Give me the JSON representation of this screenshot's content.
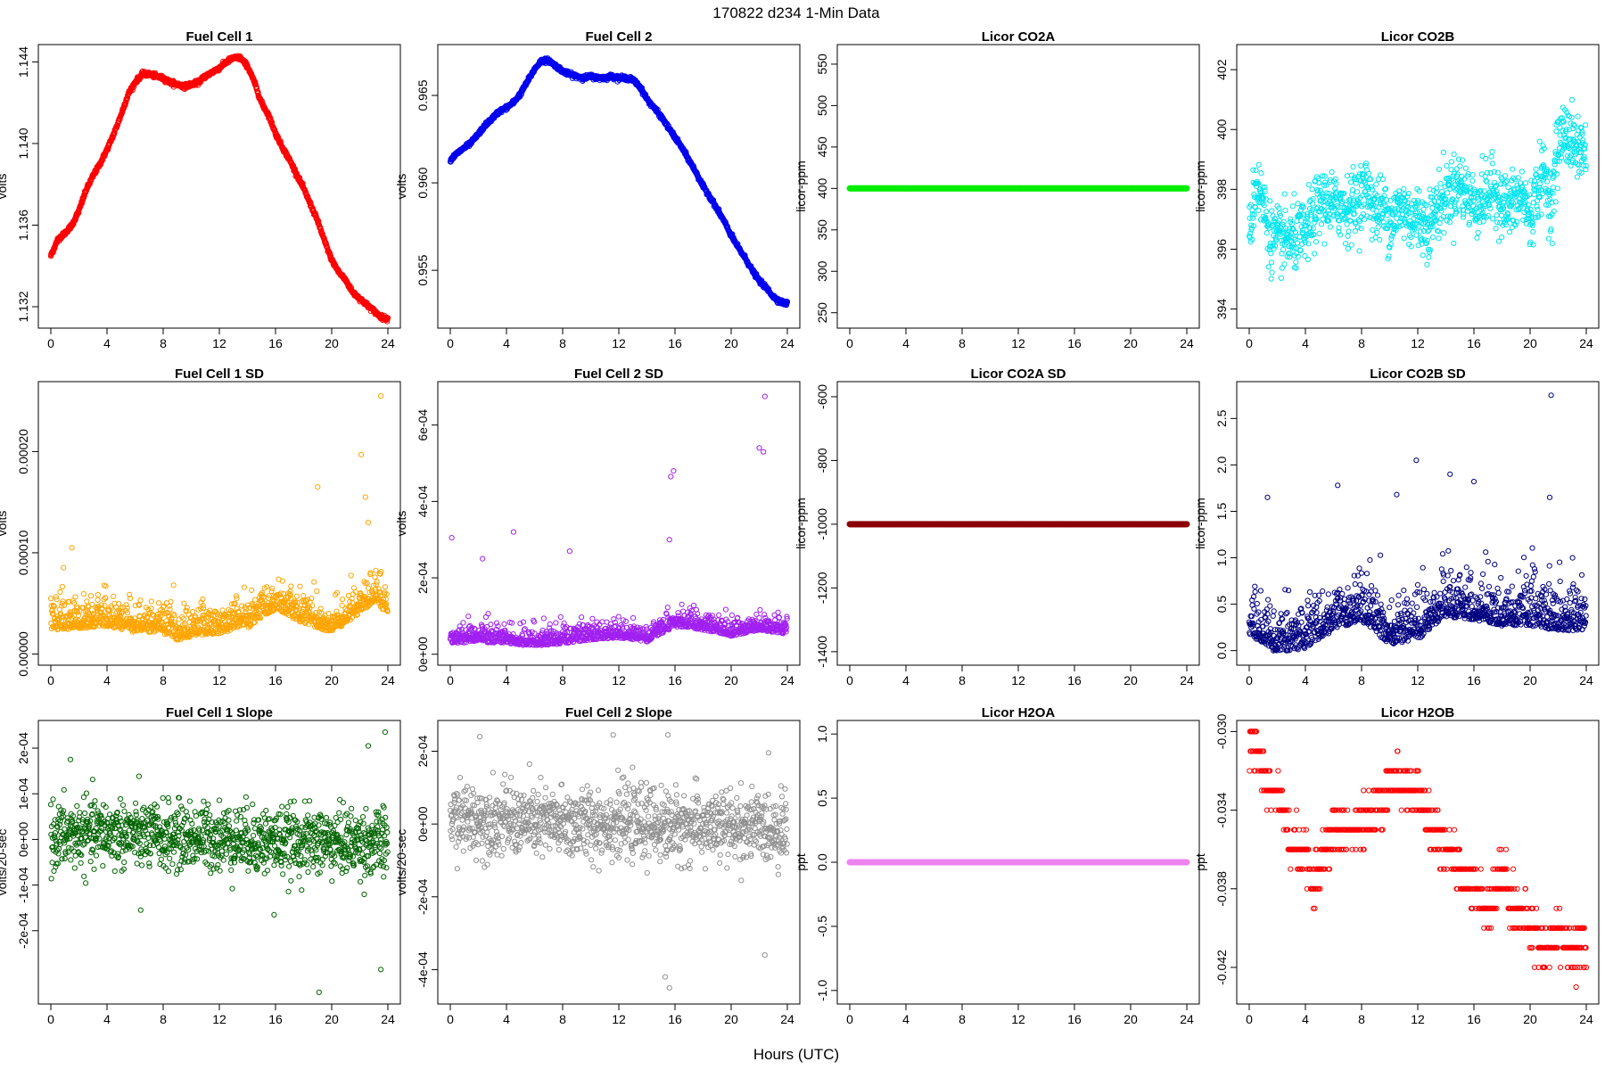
{
  "figure": {
    "title": "170822   d234   1-Min Data",
    "xlabel": "Hours (UTC)"
  },
  "chart_data": [
    {
      "id": "fc1",
      "type": "scatter",
      "title": "Fuel Cell 1",
      "ylabel": "volts",
      "color": "#ff0000",
      "xlim": [
        0,
        24
      ],
      "xticks": [
        0,
        4,
        8,
        12,
        16,
        20,
        24
      ],
      "ylim": [
        1.1313,
        1.1445
      ],
      "yticks": [
        1.132,
        1.136,
        1.14,
        1.144
      ],
      "yticklabels": [
        "1.132",
        "1.136",
        "1.140",
        "1.144"
      ],
      "x": [
        0,
        0.5,
        1,
        1.5,
        2,
        2.5,
        3,
        3.5,
        4,
        4.5,
        5,
        5.5,
        6,
        6.5,
        7,
        7.5,
        8,
        8.5,
        9,
        9.5,
        10,
        10.5,
        11,
        11.5,
        12,
        12.5,
        13,
        13.5,
        14,
        14.5,
        15,
        15.5,
        16,
        16.5,
        17,
        17.5,
        18,
        18.5,
        19,
        19.5,
        20,
        20.5,
        21,
        21.5,
        22,
        22.5,
        23,
        23.5,
        24
      ],
      "y": [
        1.1345,
        1.1353,
        1.1356,
        1.136,
        1.1367,
        1.1377,
        1.1384,
        1.139,
        1.1397,
        1.1405,
        1.1414,
        1.1424,
        1.143,
        1.1434,
        1.1434,
        1.1433,
        1.1432,
        1.143,
        1.1429,
        1.1428,
        1.1429,
        1.143,
        1.1433,
        1.1435,
        1.1437,
        1.144,
        1.1442,
        1.1442,
        1.1438,
        1.143,
        1.142,
        1.1414,
        1.1405,
        1.1398,
        1.1392,
        1.1385,
        1.1378,
        1.137,
        1.1362,
        1.1352,
        1.1343,
        1.1337,
        1.1333,
        1.1327,
        1.1324,
        1.1321,
        1.1318,
        1.1315,
        1.1314
      ]
    },
    {
      "id": "fc2",
      "type": "scatter",
      "title": "Fuel Cell 2",
      "ylabel": "volts",
      "color": "#0000ee",
      "xlim": [
        0,
        24
      ],
      "xticks": [
        0,
        4,
        8,
        12,
        16,
        20,
        24
      ],
      "ylim": [
        0.9521,
        0.9675
      ],
      "yticks": [
        0.955,
        0.96,
        0.965
      ],
      "yticklabels": [
        "0.955",
        "0.960",
        "0.965"
      ],
      "x": [
        0,
        0.5,
        1,
        1.5,
        2,
        2.5,
        3,
        3.5,
        4,
        4.5,
        5,
        5.5,
        6,
        6.5,
        7,
        7.5,
        8,
        8.5,
        9,
        9.5,
        10,
        10.5,
        11,
        11.5,
        12,
        12.5,
        13,
        13.5,
        14,
        14.5,
        15,
        15.5,
        16,
        16.5,
        17,
        17.5,
        18,
        18.5,
        19,
        19.5,
        20,
        20.5,
        21,
        21.5,
        22,
        22.5,
        23,
        23.5,
        24
      ],
      "y": [
        0.9613,
        0.9617,
        0.962,
        0.9623,
        0.9628,
        0.9633,
        0.9637,
        0.9641,
        0.9643,
        0.9646,
        0.9651,
        0.9658,
        0.9665,
        0.967,
        0.967,
        0.9667,
        0.9664,
        0.9662,
        0.9661,
        0.966,
        0.9661,
        0.966,
        0.966,
        0.9661,
        0.966,
        0.966,
        0.9659,
        0.9655,
        0.9648,
        0.9643,
        0.9638,
        0.9632,
        0.9626,
        0.962,
        0.9613,
        0.9606,
        0.9598,
        0.9592,
        0.9585,
        0.9578,
        0.957,
        0.9563,
        0.9557,
        0.955,
        0.9544,
        0.954,
        0.9535,
        0.9532,
        0.9531
      ]
    },
    {
      "id": "co2a",
      "type": "scatter",
      "title": "Licor CO2A",
      "ylabel": "licor-ppm",
      "color": "#00ee00",
      "xlim": [
        0,
        24
      ],
      "xticks": [
        0,
        4,
        8,
        12,
        16,
        20,
        24
      ],
      "ylim": [
        240,
        565
      ],
      "yticks": [
        250,
        300,
        350,
        400,
        450,
        500,
        550
      ],
      "yticklabels": [
        "250",
        "300",
        "350",
        "400",
        "450",
        "500",
        "550"
      ],
      "x": [
        0,
        24
      ],
      "y": [
        400,
        400
      ],
      "constant": true
    },
    {
      "id": "co2b",
      "type": "scatter",
      "title": "Licor CO2B",
      "ylabel": "licor-ppm",
      "color": "#00e5ee",
      "xlim": [
        0,
        24
      ],
      "xticks": [
        0,
        4,
        8,
        12,
        16,
        20,
        24
      ],
      "ylim": [
        393.6,
        402.6
      ],
      "yticks": [
        394,
        396,
        398,
        400,
        402
      ],
      "yticklabels": [
        "394",
        "396",
        "398",
        "400",
        "402"
      ],
      "x": [
        0,
        0.5,
        1,
        1.5,
        2,
        2.5,
        3,
        3.5,
        4,
        4.5,
        5,
        5.5,
        6,
        6.5,
        7,
        7.5,
        8,
        8.5,
        9,
        9.5,
        10,
        10.5,
        11,
        11.5,
        12,
        12.5,
        13,
        13.5,
        14,
        14.5,
        15,
        15.5,
        16,
        16.5,
        17,
        17.5,
        18,
        18.5,
        19,
        19.5,
        20,
        20.5,
        21,
        21.5,
        22,
        22.5,
        23,
        23.5,
        24
      ],
      "y": [
        396.5,
        398.3,
        397.5,
        396.4,
        396.3,
        396.3,
        396.3,
        396.4,
        396.5,
        397.0,
        397.5,
        397.6,
        397.4,
        397.5,
        397.3,
        397.6,
        397.8,
        398.0,
        397.2,
        397.4,
        397.0,
        397.2,
        397.4,
        397.0,
        397.1,
        396.8,
        397.0,
        397.5,
        397.8,
        398.0,
        398.2,
        397.8,
        397.5,
        397.6,
        397.8,
        398.0,
        397.5,
        397.4,
        397.6,
        397.8,
        397.0,
        398.0,
        398.5,
        397.5,
        399.5,
        400.0,
        399.5,
        399.4,
        399.3
      ],
      "spread": 0.9
    },
    {
      "id": "fc1sd",
      "type": "scatter",
      "title": "Fuel Cell 1 SD",
      "ylabel": "volts",
      "color": "#ffa500",
      "xlim": [
        0,
        24
      ],
      "xticks": [
        0,
        4,
        8,
        12,
        16,
        20,
        24
      ],
      "ylim": [
        -4e-06,
        0.000262
      ],
      "yticks": [
        0,
        0.0001,
        0.0002
      ],
      "yticklabels": [
        "0.00000",
        "0.00010",
        "0.00020"
      ],
      "x": [
        0,
        2,
        4,
        6,
        8,
        9,
        10,
        12,
        14,
        15,
        16,
        18,
        19,
        20,
        22,
        23,
        24
      ],
      "y": [
        2.8e-05,
        3e-05,
        3.2e-05,
        2.6e-05,
        2.5e-05,
        1.8e-05,
        2.2e-05,
        2.5e-05,
        3e-05,
        4e-05,
        4.8e-05,
        3.5e-05,
        3e-05,
        2.5e-05,
        4.5e-05,
        5.5e-05,
        4.5e-05
      ],
      "spread": 1.6e-05,
      "outliers": [
        [
          23.5,
          0.000255
        ],
        [
          22.1,
          0.000197
        ],
        [
          22.4,
          0.000155
        ],
        [
          19.0,
          0.000165
        ],
        [
          22.6,
          0.00013
        ],
        [
          1.5,
          0.000105
        ]
      ]
    },
    {
      "id": "fc2sd",
      "type": "scatter",
      "title": "Fuel Cell 2 SD",
      "ylabel": "volts",
      "color": "#a020f0",
      "xlim": [
        0,
        24
      ],
      "xticks": [
        0,
        4,
        8,
        12,
        16,
        20,
        24
      ],
      "ylim": [
        -1e-05,
        0.000695
      ],
      "yticks": [
        0,
        0.0002,
        0.0004,
        0.0006
      ],
      "yticklabels": [
        "0e+00",
        "2e-04",
        "4e-04",
        "6e-04"
      ],
      "x": [
        0,
        2,
        4,
        6,
        8,
        10,
        12,
        14,
        15,
        16,
        18,
        20,
        22,
        24
      ],
      "y": [
        3.5e-05,
        4e-05,
        3.5e-05,
        2.8e-05,
        3.5e-05,
        4.5e-05,
        5e-05,
        4e-05,
        6e-05,
        8e-05,
        7e-05,
        5.5e-05,
        7e-05,
        6e-05
      ],
      "spread": 2.5e-05,
      "outliers": [
        [
          22.4,
          0.000675
        ],
        [
          22.0,
          0.00054
        ],
        [
          22.3,
          0.00053
        ],
        [
          15.9,
          0.00048
        ],
        [
          15.7,
          0.000465
        ],
        [
          0.1,
          0.000305
        ],
        [
          4.5,
          0.00032
        ],
        [
          15.6,
          0.0003
        ],
        [
          2.3,
          0.00025
        ],
        [
          8.5,
          0.00027
        ]
      ]
    },
    {
      "id": "co2asd",
      "type": "scatter",
      "title": "Licor CO2A SD",
      "ylabel": "licor-ppm",
      "color": "#8b0000",
      "xlim": [
        0,
        24
      ],
      "xticks": [
        0,
        4,
        8,
        12,
        16,
        20,
        24
      ],
      "ylim": [
        -1420,
        -575
      ],
      "yticks": [
        -1400,
        -1200,
        -1000,
        -800,
        -600
      ],
      "yticklabels": [
        "-1400",
        "-1200",
        "-1000",
        "-800",
        "-600"
      ],
      "x": [
        0,
        24
      ],
      "y": [
        -1000,
        -1000
      ],
      "constant": true
    },
    {
      "id": "co2bsd",
      "type": "scatter",
      "title": "Licor CO2B SD",
      "ylabel": "licor-ppm",
      "color": "#000080",
      "xlim": [
        0,
        24
      ],
      "xticks": [
        0,
        4,
        8,
        12,
        16,
        20,
        24
      ],
      "ylim": [
        -0.08,
        2.82
      ],
      "yticks": [
        0,
        0.5,
        1.0,
        1.5,
        2.0,
        2.5
      ],
      "yticklabels": [
        "0.0",
        "0.5",
        "1.0",
        "1.5",
        "2.0",
        "2.5"
      ],
      "x": [
        0,
        2,
        4,
        6,
        8,
        10,
        12,
        14,
        16,
        18,
        20,
        22,
        24
      ],
      "y": [
        0.25,
        0.05,
        0.1,
        0.3,
        0.4,
        0.15,
        0.2,
        0.45,
        0.4,
        0.35,
        0.35,
        0.3,
        0.3
      ],
      "spread": 0.28,
      "outliers": [
        [
          21.5,
          2.75
        ],
        [
          11.9,
          2.05
        ],
        [
          14.3,
          1.9
        ],
        [
          16.0,
          1.82
        ],
        [
          6.3,
          1.78
        ],
        [
          1.3,
          1.65
        ],
        [
          21.4,
          1.65
        ],
        [
          10.5,
          1.68
        ]
      ]
    },
    {
      "id": "fc1slope",
      "type": "scatter",
      "title": "Fuel Cell 1 Slope",
      "ylabel": "volts/20-sec",
      "color": "#006400",
      "xlim": [
        0,
        24
      ],
      "xticks": [
        0,
        4,
        8,
        12,
        16,
        20,
        24
      ],
      "ylim": [
        -0.000345,
        0.000245
      ],
      "yticks": [
        -0.0002,
        -0.0001,
        0,
        0.0001,
        0.0002
      ],
      "yticklabels": [
        "-2e-04",
        "-1e-04",
        "0e+00",
        "1e-04",
        "2e-04"
      ],
      "x": [
        0,
        4,
        8,
        12,
        16,
        20,
        24
      ],
      "y": [
        5e-06,
        1.5e-05,
        5e-06,
        5e-06,
        -5e-06,
        -5e-06,
        -1e-05
      ],
      "spread": 6e-05,
      "outliers": [
        [
          23.8,
          0.000235
        ],
        [
          22.6,
          0.000205
        ],
        [
          19.1,
          -0.000335
        ],
        [
          23.5,
          -0.000285
        ],
        [
          6.4,
          -0.000155
        ],
        [
          1.4,
          0.000175
        ],
        [
          15.9,
          -0.000165
        ]
      ]
    },
    {
      "id": "fc2slope",
      "type": "scatter",
      "title": "Fuel Cell 2 Slope",
      "ylabel": "volts/20-sec",
      "color": "#909090",
      "xlim": [
        0,
        24
      ],
      "xticks": [
        0,
        4,
        8,
        12,
        16,
        20,
        24
      ],
      "ylim": [
        -0.000475,
        0.000265
      ],
      "yticks": [
        -0.0004,
        -0.0002,
        0,
        0.0002
      ],
      "yticklabels": [
        "-4e-04",
        "-2e-04",
        "0e+00",
        "2e-04"
      ],
      "x": [
        0,
        4,
        8,
        12,
        16,
        20,
        24
      ],
      "y": [
        1.5e-05,
        1e-05,
        0.0,
        5e-06,
        -5e-06,
        -1e-05,
        -1e-05
      ],
      "spread": 8e-05,
      "outliers": [
        [
          15.6,
          -0.00045
        ],
        [
          15.3,
          -0.00042
        ],
        [
          22.4,
          -0.00036
        ],
        [
          15.5,
          0.000245
        ],
        [
          2.1,
          0.00024
        ],
        [
          11.6,
          0.000245
        ]
      ]
    },
    {
      "id": "h2oa",
      "type": "scatter",
      "title": "Licor H2OA",
      "ylabel": "ppt",
      "color": "#ee82ee",
      "xlim": [
        0,
        24
      ],
      "xticks": [
        0,
        4,
        8,
        12,
        16,
        20,
        24
      ],
      "ylim": [
        -1.05,
        1.05
      ],
      "yticks": [
        -1.0,
        -0.5,
        0,
        0.5,
        1.0
      ],
      "yticklabels": [
        "-1.0",
        "-0.5",
        "0.0",
        "0.5",
        "1.0"
      ],
      "x": [
        0,
        24
      ],
      "y": [
        0,
        0
      ],
      "constant": true
    },
    {
      "id": "h2ob",
      "type": "scatter",
      "title": "Licor H2OB",
      "ylabel": "ppt",
      "color": "#ff0000",
      "xlim": [
        0,
        24
      ],
      "xticks": [
        0,
        4,
        8,
        12,
        16,
        20,
        24
      ],
      "ylim": [
        -0.0435,
        -0.0298
      ],
      "yticks": [
        -0.042,
        -0.038,
        -0.034,
        -0.03
      ],
      "yticklabels": [
        "-0.042",
        "-0.038",
        "-0.034",
        "-0.030"
      ],
      "x": [
        0,
        0.6,
        1,
        1.5,
        2,
        3,
        4,
        4.5,
        5,
        6,
        7,
        8,
        9,
        10,
        10.5,
        11,
        12,
        12.5,
        13,
        14,
        15,
        16,
        17,
        18,
        19,
        20,
        21,
        22,
        23,
        24
      ],
      "y": [
        -0.03,
        -0.031,
        -0.032,
        -0.033,
        -0.033,
        -0.036,
        -0.036,
        -0.038,
        -0.037,
        -0.035,
        -0.035,
        -0.035,
        -0.034,
        -0.033,
        -0.032,
        -0.033,
        -0.033,
        -0.034,
        -0.035,
        -0.036,
        -0.037,
        -0.038,
        -0.039,
        -0.037,
        -0.039,
        -0.04,
        -0.041,
        -0.04,
        -0.041,
        -0.041
      ],
      "quantized": 0.001
    }
  ]
}
